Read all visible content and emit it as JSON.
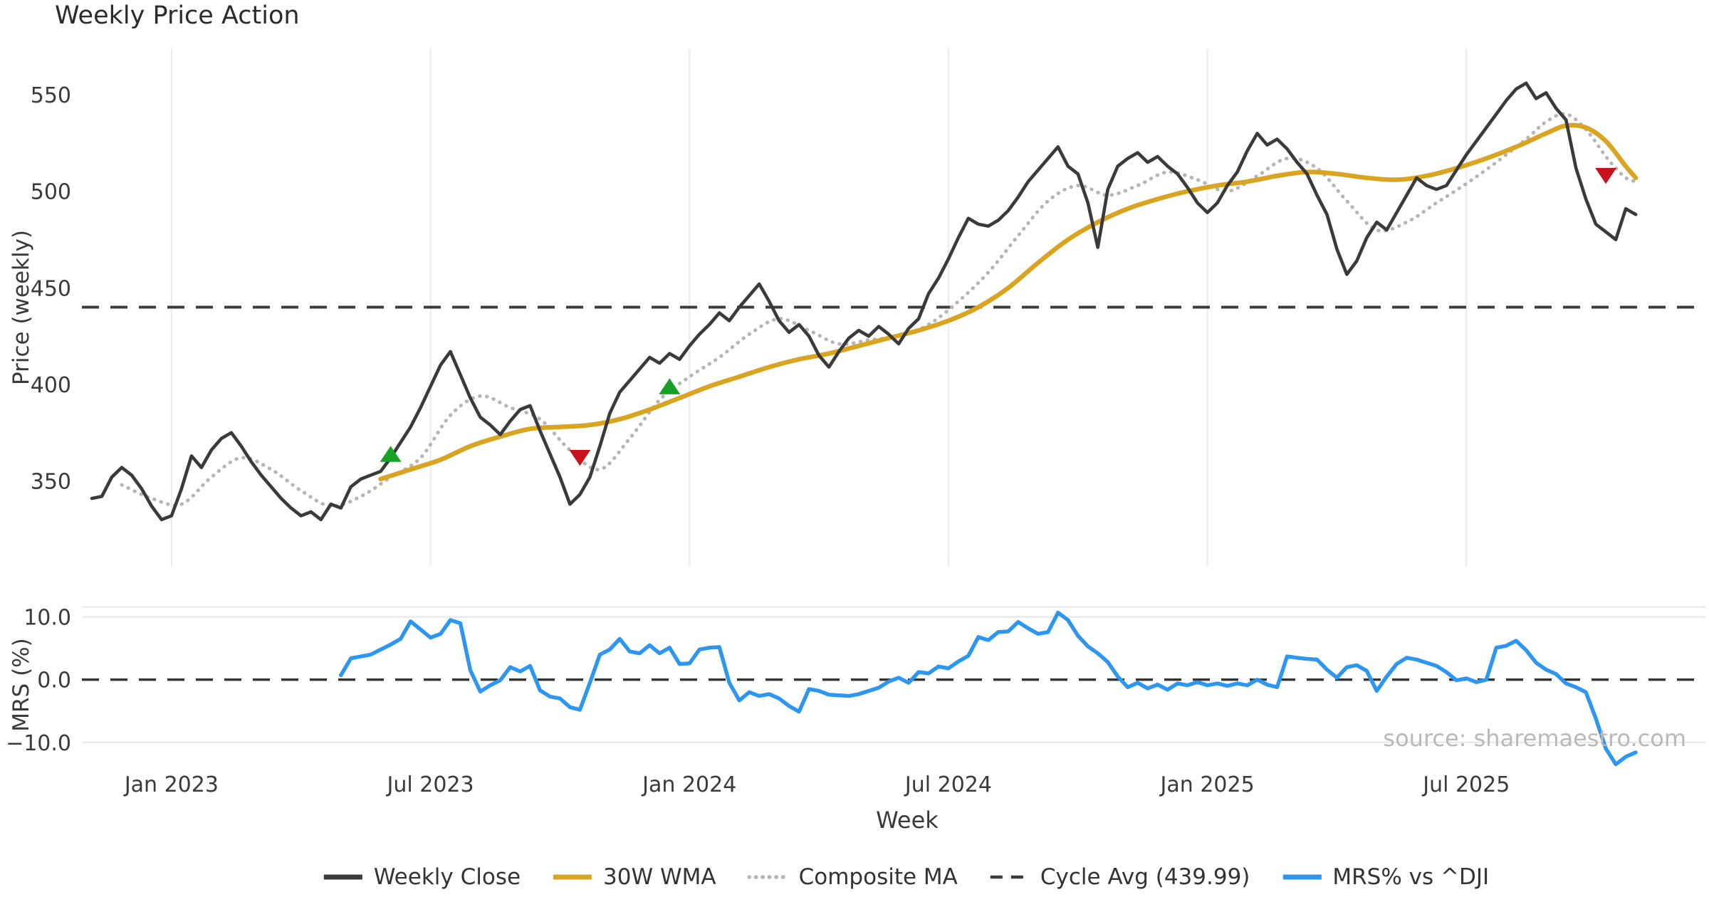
{
  "title": "Weekly Price Action",
  "labels": {
    "price_ylabel": "Price (weekly)",
    "mrs_ylabel": "MRS (%)",
    "xlabel": "Week"
  },
  "source": "source: sharemaestro.com",
  "colors": {
    "background": "#ffffff",
    "weekly_close": "#3a3a3a",
    "wma_30w": "#d9a521",
    "composite_ma": "#b5b5b5",
    "cycle_avg": "#3d3d3d",
    "mrs": "#2d96ee",
    "buy_signal": "#18a127",
    "sell_signal": "#c8121b",
    "grid_vertical": "#e9ecf4",
    "grid_horizontal": "#e6e6e6",
    "tick_text": "#3a3a3a",
    "source_text": "#b9b9b9"
  },
  "legend": [
    {
      "label": "Weekly Close",
      "color": "#3a3a3a",
      "style": "solid"
    },
    {
      "label": "30W WMA",
      "color": "#d9a521",
      "style": "solid"
    },
    {
      "label": "Composite MA",
      "color": "#b5b5b5",
      "style": "dotted"
    },
    {
      "label": "Cycle Avg (439.99)",
      "color": "#3d3d3d",
      "style": "dashed"
    },
    {
      "label": "MRS% vs ^DJI",
      "color": "#2d96ee",
      "style": "solid"
    }
  ],
  "chart_data": {
    "type": "line",
    "x_unit": "week_index_from_2022-11",
    "xlim": [
      -1,
      162
    ],
    "x_ticks": [
      {
        "label": "Jan 2023",
        "week": 8
      },
      {
        "label": "Jul 2023",
        "week": 34
      },
      {
        "label": "Jan 2024",
        "week": 60
      },
      {
        "label": "Jul 2024",
        "week": 86
      },
      {
        "label": "Jan 2025",
        "week": 112
      },
      {
        "label": "Jul 2025",
        "week": 138
      }
    ],
    "price_panel": {
      "ylabel": "Price (weekly)",
      "ylim": [
        306,
        574
      ],
      "yticks": [
        {
          "label": "350",
          "value": 350
        },
        {
          "label": "400",
          "value": 400
        },
        {
          "label": "450",
          "value": 450
        },
        {
          "label": "500",
          "value": 500
        },
        {
          "label": "550",
          "value": 550
        }
      ],
      "cycle_avg": 439.99,
      "grid": "vertical-months"
    },
    "mrs_panel": {
      "ylabel": "MRS (%)",
      "ylim": [
        -14,
        12
      ],
      "yticks": [
        {
          "label": "10.0",
          "value": 10
        },
        {
          "label": "0.0",
          "value": 0
        },
        {
          "label": "−10.0",
          "value": -10
        }
      ],
      "zero_line": 0,
      "gridlines": [
        11.6,
        10,
        -10
      ]
    },
    "series": {
      "weekly_close": {
        "name": "Weekly Close",
        "color": "#3a3a3a",
        "start_week": 0,
        "values": [
          341,
          342,
          352,
          357,
          353,
          346,
          337,
          330,
          332,
          346,
          363,
          357,
          366,
          372,
          375,
          368,
          360,
          353,
          347,
          341,
          336,
          332,
          334,
          330,
          338,
          336,
          347,
          351,
          353,
          355,
          362,
          370,
          378,
          388,
          399,
          410,
          417,
          405,
          393,
          383,
          379,
          374,
          381,
          387,
          389,
          376,
          364,
          352,
          338,
          343,
          352,
          368,
          385,
          396,
          402,
          408,
          414,
          411,
          416,
          413,
          420,
          426,
          431,
          437,
          433,
          440,
          446,
          452,
          443,
          433,
          427,
          431,
          425,
          415,
          409,
          417,
          424,
          428,
          425,
          430,
          426,
          421,
          429,
          434,
          447,
          455,
          465,
          476,
          486,
          483,
          482,
          485,
          490,
          497,
          505,
          511,
          517,
          523,
          513,
          509,
          494,
          471,
          501,
          513,
          517,
          520,
          515,
          518,
          513,
          509,
          502,
          494,
          489,
          494,
          503,
          510,
          521,
          530,
          524,
          527,
          522,
          515,
          509,
          498,
          488,
          470,
          457,
          464,
          476,
          484,
          480,
          489,
          498,
          507,
          503,
          501,
          503,
          511,
          519,
          526,
          533,
          540,
          547,
          553,
          556,
          548,
          551,
          543,
          537,
          512,
          496,
          483,
          479,
          475,
          491,
          488
        ]
      },
      "wma_30w": {
        "name": "30W WMA",
        "color": "#d9a521",
        "knots": [
          [
            29,
            351
          ],
          [
            32,
            356
          ],
          [
            35,
            361
          ],
          [
            38,
            368
          ],
          [
            41,
            373
          ],
          [
            44,
            377
          ],
          [
            47,
            378
          ],
          [
            50,
            379
          ],
          [
            53,
            382
          ],
          [
            56,
            387
          ],
          [
            59,
            393
          ],
          [
            62,
            399
          ],
          [
            65,
            404
          ],
          [
            68,
            409
          ],
          [
            71,
            413
          ],
          [
            74,
            416
          ],
          [
            77,
            420
          ],
          [
            80,
            424
          ],
          [
            83,
            428
          ],
          [
            86,
            433
          ],
          [
            89,
            440
          ],
          [
            92,
            450
          ],
          [
            95,
            463
          ],
          [
            98,
            475
          ],
          [
            101,
            484
          ],
          [
            104,
            491
          ],
          [
            107,
            496
          ],
          [
            110,
            500
          ],
          [
            113,
            503
          ],
          [
            116,
            505
          ],
          [
            119,
            508
          ],
          [
            122,
            510
          ],
          [
            125,
            509
          ],
          [
            128,
            507
          ],
          [
            131,
            506
          ],
          [
            134,
            508
          ],
          [
            137,
            512
          ],
          [
            140,
            517
          ],
          [
            143,
            523
          ],
          [
            146,
            530
          ],
          [
            148,
            534
          ],
          [
            150,
            533
          ],
          [
            152,
            526
          ],
          [
            154,
            513
          ],
          [
            155,
            507
          ]
        ]
      },
      "composite_ma": {
        "name": "Composite MA",
        "color": "#b5b5b5",
        "knots": [
          [
            3,
            348
          ],
          [
            6,
            341
          ],
          [
            9,
            338
          ],
          [
            12,
            352
          ],
          [
            15,
            362
          ],
          [
            18,
            356
          ],
          [
            21,
            345
          ],
          [
            24,
            337
          ],
          [
            27,
            342
          ],
          [
            30,
            352
          ],
          [
            33,
            362
          ],
          [
            36,
            384
          ],
          [
            39,
            394
          ],
          [
            42,
            388
          ],
          [
            45,
            382
          ],
          [
            48,
            366
          ],
          [
            51,
            356
          ],
          [
            54,
            372
          ],
          [
            57,
            392
          ],
          [
            60,
            404
          ],
          [
            63,
            414
          ],
          [
            66,
            426
          ],
          [
            69,
            434
          ],
          [
            72,
            428
          ],
          [
            75,
            421
          ],
          [
            78,
            423
          ],
          [
            81,
            425
          ],
          [
            84,
            431
          ],
          [
            87,
            443
          ],
          [
            90,
            458
          ],
          [
            93,
            477
          ],
          [
            96,
            495
          ],
          [
            99,
            503
          ],
          [
            102,
            498
          ],
          [
            105,
            503
          ],
          [
            108,
            510
          ],
          [
            111,
            506
          ],
          [
            114,
            500
          ],
          [
            117,
            508
          ],
          [
            120,
            517
          ],
          [
            123,
            512
          ],
          [
            126,
            495
          ],
          [
            129,
            480
          ],
          [
            132,
            484
          ],
          [
            135,
            494
          ],
          [
            138,
            504
          ],
          [
            141,
            515
          ],
          [
            144,
            527
          ],
          [
            146,
            536
          ],
          [
            148,
            540
          ],
          [
            150,
            532
          ],
          [
            152,
            518
          ],
          [
            153,
            512
          ],
          [
            154,
            507
          ],
          [
            155,
            505
          ]
        ]
      },
      "cycle_avg": {
        "name": "Cycle Avg (439.99)",
        "color": "#3d3d3d",
        "value": 439.99
      },
      "mrs": {
        "name": "MRS% vs ^DJI",
        "color": "#2d96ee",
        "start_week": 25,
        "values": [
          0.7,
          3.4,
          3.7,
          4.0,
          4.8,
          5.6,
          6.5,
          9.3,
          8.0,
          6.7,
          7.3,
          9.5,
          9.0,
          1.5,
          -1.9,
          -0.9,
          -0.1,
          2.0,
          1.3,
          2.2,
          -1.7,
          -2.7,
          -3.0,
          -4.4,
          -4.8,
          -0.5,
          4.0,
          4.8,
          6.5,
          4.5,
          4.2,
          5.5,
          4.2,
          5.1,
          2.5,
          2.6,
          4.8,
          5.1,
          5.2,
          -0.5,
          -3.3,
          -2.0,
          -2.6,
          -2.3,
          -3.0,
          -4.2,
          -5.1,
          -1.5,
          -1.8,
          -2.4,
          -2.5,
          -2.6,
          -2.3,
          -1.8,
          -1.3,
          -0.3,
          0.3,
          -0.5,
          1.2,
          1.0,
          2.1,
          1.8,
          2.9,
          3.8,
          6.8,
          6.3,
          7.6,
          7.7,
          9.2,
          8.2,
          7.3,
          7.6,
          10.7,
          9.5,
          7.0,
          5.3,
          4.2,
          2.8,
          0.5,
          -1.2,
          -0.5,
          -1.4,
          -0.8,
          -1.6,
          -0.6,
          -0.9,
          -0.4,
          -0.9,
          -0.6,
          -1.0,
          -0.6,
          -0.9,
          0.0,
          -0.8,
          -1.2,
          3.7,
          3.5,
          3.3,
          3.2,
          1.6,
          0.3,
          2.0,
          2.3,
          1.4,
          -1.8,
          0.5,
          2.5,
          3.5,
          3.2,
          2.7,
          2.2,
          1.2,
          -0.1,
          0.2,
          -0.4,
          0.0,
          5.1,
          5.4,
          6.2,
          4.7,
          2.7,
          1.6,
          0.9,
          -0.6,
          -1.2,
          -2.0,
          -6.2,
          -11.0,
          -13.5,
          -12.3,
          -11.6
        ]
      }
    },
    "signals": {
      "buy": {
        "color": "#18a127",
        "marker": "triangle-up",
        "points": [
          [
            30,
            363
          ],
          [
            58,
            398
          ]
        ]
      },
      "sell": {
        "color": "#c8121b",
        "marker": "triangle-down",
        "points": [
          [
            49,
            363
          ],
          [
            152,
            509
          ]
        ]
      }
    }
  }
}
